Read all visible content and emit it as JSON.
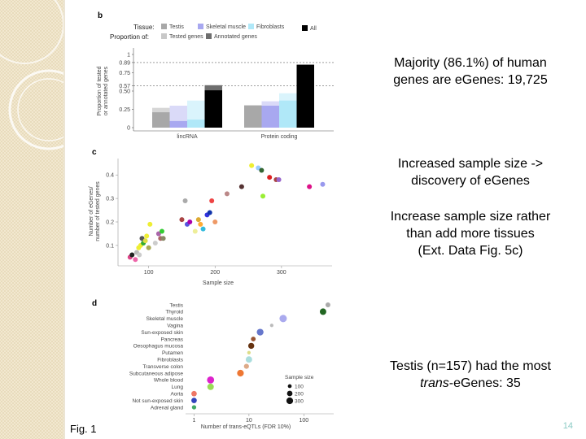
{
  "slide": {
    "figure_label": "Fig. 1",
    "page_number": "14",
    "notes": [
      {
        "lines": [
          "Majority (86.1%) of human",
          "genes are eGenes: 19,725"
        ]
      },
      {
        "lines": [
          "Increased sample size ->",
          "discovery of eGenes"
        ]
      },
      {
        "lines": [
          "Increase sample size rather",
          "than add more tissues",
          "(Ext. Data Fig. 5c)"
        ]
      },
      {
        "lines": [
          "Testis (n=157) had the most",
          [
            {
              "text": "trans",
              "italic": true
            },
            {
              "text": "-eGenes: 35"
            }
          ]
        ]
      }
    ]
  },
  "chart_data": [
    {
      "type": "bar",
      "panel": "b",
      "legend_tissue_title": "Tissue:",
      "legend_proportion_title": "Proportion of:",
      "categories": [
        "lincRNA",
        "Protein coding"
      ],
      "y_label": [
        "Proportion of tested",
        "or annotated genes"
      ],
      "ylim": [
        0,
        1
      ],
      "yticks": [
        0,
        0.25,
        {
          "value": 0.5,
          "label": "0.50"
        },
        0.57,
        0.75,
        0.89,
        1
      ],
      "ref_lines": [
        0.57,
        0.89
      ],
      "proportion_legend": [
        {
          "name": "Tested genes",
          "color": "#c8c8c8"
        },
        {
          "name": "Annotated genes",
          "color": "#6e6e6e"
        }
      ],
      "series": [
        {
          "name": "Testis",
          "color": "#a8a8a8",
          "light_color": "#d6d6d6",
          "tested": [
            0.27,
            0.31
          ],
          "values": [
            0.21,
            0.3
          ]
        },
        {
          "name": "Skeletal muscle",
          "color": "#a8a8f0",
          "light_color": "#dadaf8",
          "tested": [
            0.3,
            0.36
          ],
          "values": [
            0.09,
            0.3
          ]
        },
        {
          "name": "Fibroblasts",
          "color": "#b0e8f8",
          "light_color": "#daf4fc",
          "tested": [
            0.37,
            0.47
          ],
          "values": [
            0.11,
            0.37
          ]
        },
        {
          "name": "All",
          "color": "#000000",
          "light_color": "#6e6e6e",
          "tested": [
            0.58,
            0.86
          ],
          "values": [
            0.51,
            0.86
          ]
        }
      ]
    },
    {
      "type": "scatter",
      "panel": "c",
      "x_label": "Sample size",
      "y_label": [
        "Number of eGenes/",
        "number of tested genes"
      ],
      "xlim": [
        60,
        370
      ],
      "ylim": [
        0.02,
        0.47
      ],
      "xticks": [
        100,
        200,
        300
      ],
      "yticks": [
        0.1,
        0.2,
        0.3,
        0.4
      ],
      "x": [
        72,
        75,
        80,
        82,
        85,
        86,
        88,
        90,
        92,
        95,
        97,
        100,
        102,
        110,
        115,
        118,
        120,
        122,
        150,
        155,
        158,
        162,
        170,
        175,
        178,
        182,
        188,
        192,
        195,
        200,
        218,
        240,
        255,
        265,
        270,
        272,
        282,
        292,
        296,
        342,
        362
      ],
      "values": [
        0.05,
        0.06,
        0.04,
        0.07,
        0.09,
        0.06,
        0.1,
        0.13,
        0.11,
        0.12,
        0.14,
        0.09,
        0.19,
        0.11,
        0.15,
        0.13,
        0.16,
        0.13,
        0.21,
        0.29,
        0.19,
        0.2,
        0.16,
        0.21,
        0.19,
        0.17,
        0.23,
        0.24,
        0.29,
        0.2,
        0.32,
        0.35,
        0.44,
        0.43,
        0.42,
        0.31,
        0.39,
        0.38,
        0.38,
        0.35,
        0.36
      ],
      "colors": [
        "#dd4488",
        "#222222",
        "#ee66aa",
        "#bbbbbb",
        "#eeee33",
        "#cccccc",
        "#eeee33",
        "#555555",
        "#33aa33",
        "#dddd44",
        "#eeee33",
        "#aaaa55",
        "#eeee33",
        "#cccccc",
        "#aa66aa",
        "#aa6666",
        "#33cc33",
        "#888866",
        "#aa4444",
        "#aaaaaa",
        "#5555dd",
        "#aa00aa",
        "#eeee99",
        "#ddaa33",
        "#ffaa33",
        "#33bbdd",
        "#3333dd",
        "#1133aa",
        "#ee4444",
        "#ee9966",
        "#bb8888",
        "#553333",
        "#eeee33",
        "#99ccff",
        "#336633",
        "#99ee33",
        "#dd2222",
        "#aa4444",
        "#9966cc",
        "#dd1188",
        "#9999ee"
      ]
    },
    {
      "type": "dot",
      "panel": "d",
      "x_label": "Number of trans-eQTLs (FDR 10%)",
      "log_x": true,
      "xlim": [
        0.7,
        350
      ],
      "xticks": [
        1,
        10,
        100
      ],
      "categories": [
        "Testis",
        "Thyroid",
        "Skeletal muscle",
        "Vagina",
        "Sun-exposed skin",
        "Pancreas",
        "Oesophagus mucosa",
        "Putamen",
        "Fibroblasts",
        "Transverse colon",
        "Subcutaneous adipose",
        "Whole blood",
        "Lung",
        "Aorta",
        "Not sun-exposed skin",
        "Adrenal gland"
      ],
      "values": [
        275,
        224,
        42,
        26,
        16,
        12,
        11,
        10,
        10,
        9,
        7,
        2,
        2,
        1,
        1,
        1
      ],
      "sizes": [
        157,
        278,
        361,
        79,
        302,
        149,
        241,
        82,
        272,
        169,
        298,
        338,
        278,
        197,
        196,
        126
      ],
      "colors": [
        "#aaaaaa",
        "#226622",
        "#aaaaee",
        "#bbbbbb",
        "#6677cc",
        "#995533",
        "#663311",
        "#dddd88",
        "#aadddd",
        "#ddaa88",
        "#ee7733",
        "#dd22cc",
        "#99dd55",
        "#ee7766",
        "#3344bb",
        "#44aa66"
      ],
      "size_legend_title": "Sample size",
      "size_legend": [
        100,
        200,
        300
      ]
    }
  ]
}
